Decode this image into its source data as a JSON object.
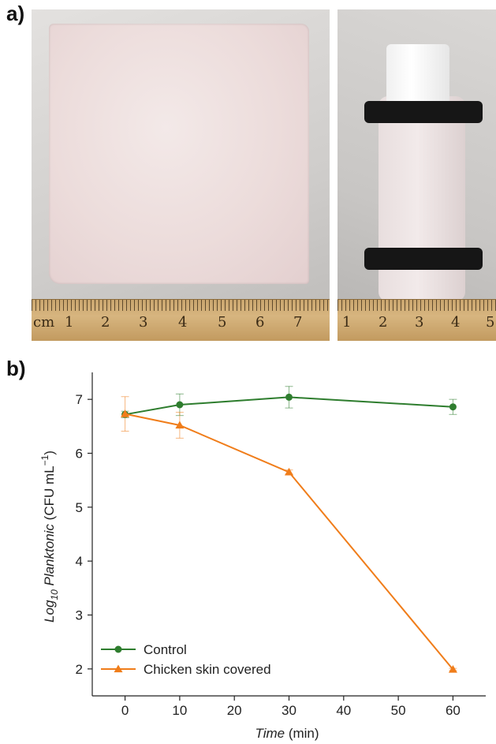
{
  "panels": {
    "a_label": "a)",
    "b_label": "b)"
  },
  "photos": {
    "left_ruler_prefix": "cm",
    "left_ruler_numbers": [
      "1",
      "2",
      "3",
      "4",
      "5",
      "6",
      "7"
    ],
    "right_ruler_numbers": [
      "1",
      "2",
      "3",
      "4",
      "5"
    ]
  },
  "colors": {
    "control": "#2e7d2e",
    "chicken": "#f07d1a"
  },
  "chart_data": {
    "type": "line",
    "title": "",
    "xlabel_italic": "Time",
    "xlabel_unit": " (min)",
    "ylabel_prefix": "Log",
    "ylabel_sub": "10",
    "ylabel_italic": " Planktonic",
    "ylabel_unit": " (CFU mL",
    "ylabel_sup": "−1",
    "ylabel_close": ")",
    "xlim": [
      -6,
      66
    ],
    "ylim": [
      1.5,
      7.5
    ],
    "x_ticks": [
      "0",
      "10",
      "20",
      "30",
      "40",
      "50",
      "60"
    ],
    "y_ticks": [
      "2",
      "3",
      "4",
      "5",
      "6",
      "7"
    ],
    "legend_position": "bottom-left",
    "series": [
      {
        "name": "Control",
        "color": "#2e7d2e",
        "marker": "circle",
        "x": [
          0,
          10,
          30,
          60
        ],
        "y": [
          6.72,
          6.9,
          7.04,
          6.86
        ],
        "err": [
          0.06,
          0.2,
          0.2,
          0.14
        ]
      },
      {
        "name": "Chicken skin covered",
        "color": "#f07d1a",
        "marker": "triangle",
        "x": [
          0,
          10,
          30,
          60
        ],
        "y": [
          6.73,
          6.52,
          5.65,
          1.99
        ],
        "err": [
          0.32,
          0.24,
          0.04,
          0.02
        ]
      }
    ]
  }
}
